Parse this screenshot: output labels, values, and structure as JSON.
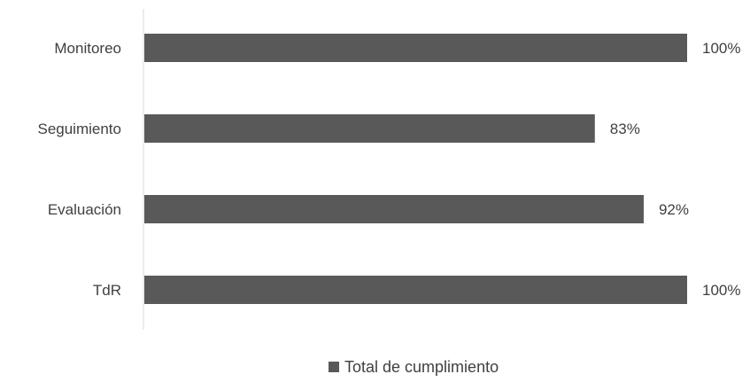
{
  "chart_data": {
    "type": "bar",
    "orientation": "horizontal",
    "categories": [
      "Monitoreo",
      "Seguimiento",
      "Evaluación",
      "TdR"
    ],
    "series": [
      {
        "name": "Total de cumplimiento",
        "values": [
          100,
          83,
          92,
          100
        ],
        "labels": [
          "100%",
          "83%",
          "92%",
          "100%"
        ],
        "color": "#595959"
      }
    ],
    "xlim": [
      0,
      100
    ],
    "grid": false,
    "legend_position": "bottom"
  }
}
